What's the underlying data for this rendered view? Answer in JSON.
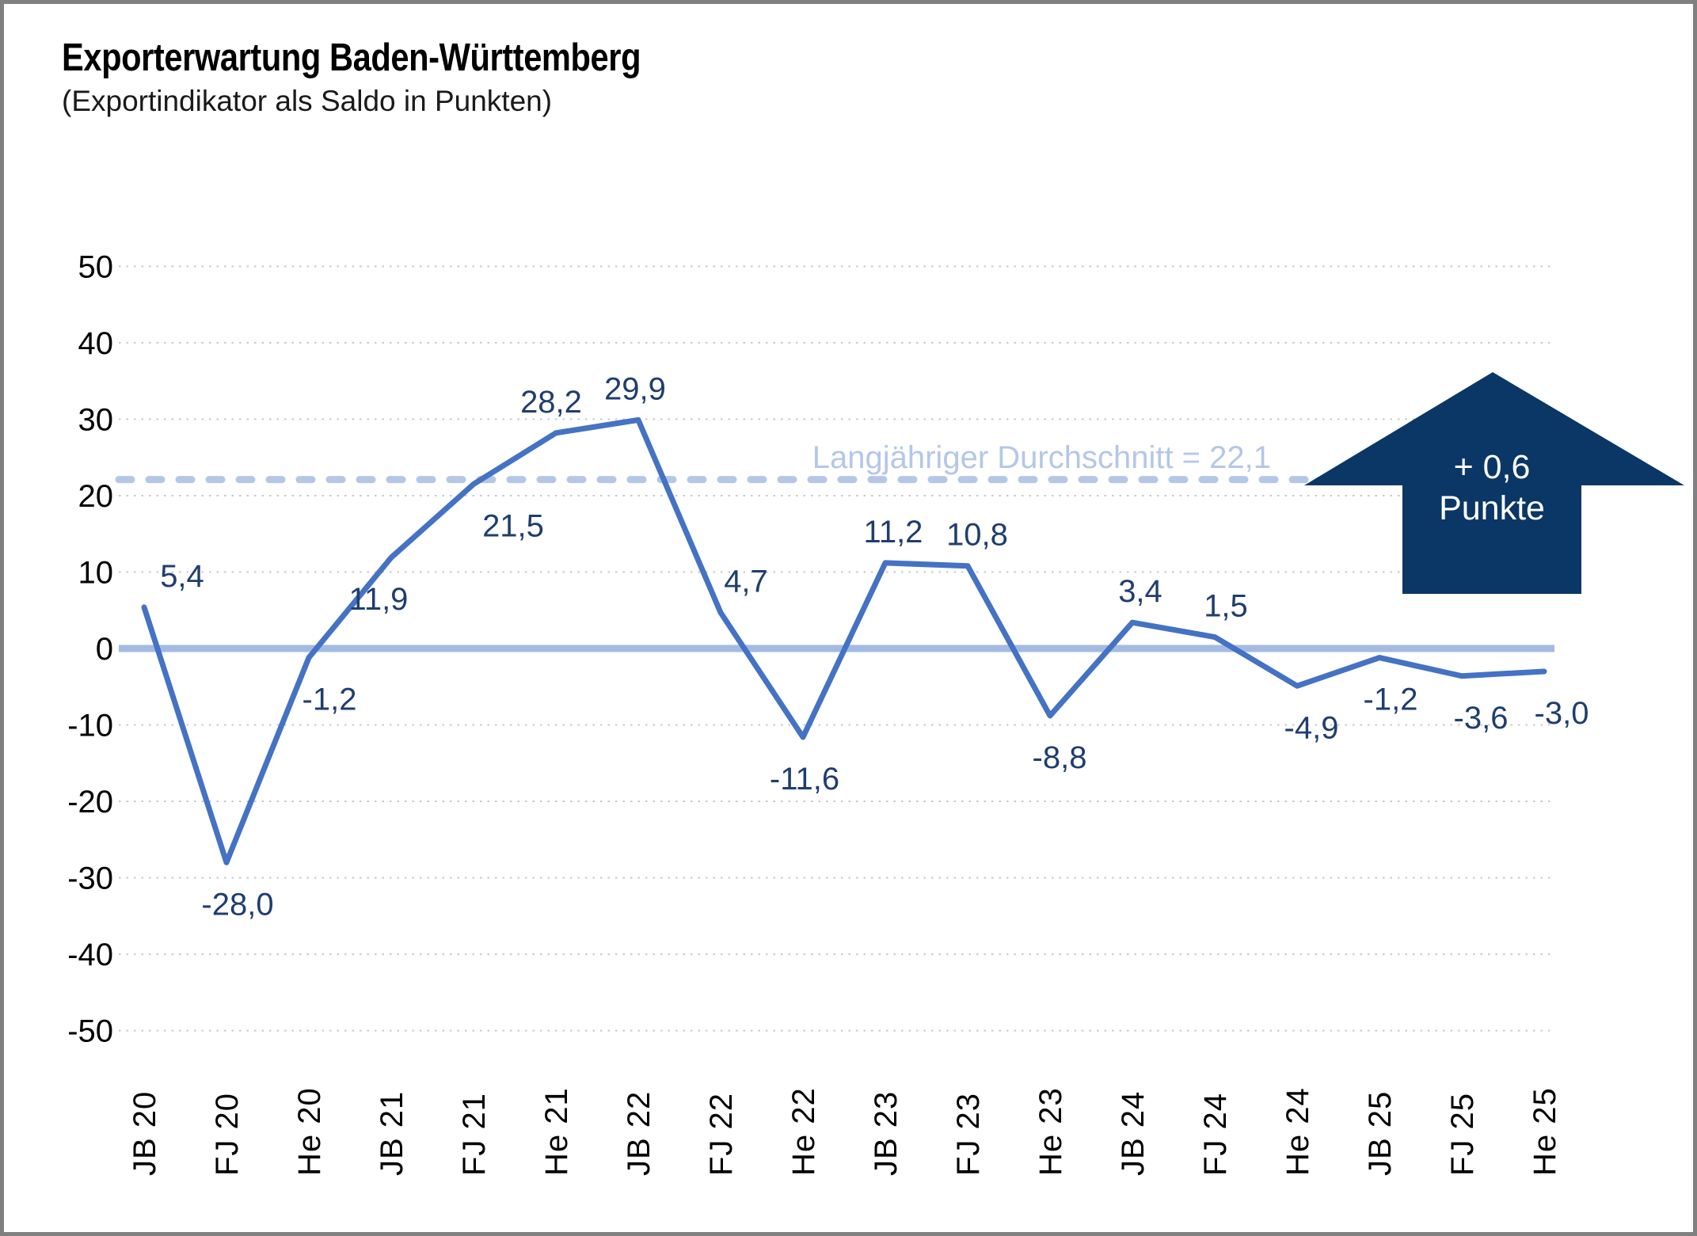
{
  "title": "Exporterwartung Baden-Württemberg",
  "subtitle": "(Exportindikator als Saldo in Punkten)",
  "average_annotation": {
    "label": "Langjähriger Durchschnitt = 22,1",
    "value": 22.1
  },
  "arrow_badge": {
    "line1": "+ 0,6",
    "line2": "Punkte"
  },
  "colors": {
    "line": "#4472C4",
    "zero_line": "#A3BBE3",
    "average_line": "#B4C7E7",
    "average_label": "#B4C7E7",
    "data_label": "#1F3E6E",
    "arrow_fill": "#0A3765",
    "arrow_text": "#FFFFFF",
    "gridline": "#C9C9C9",
    "axis_text": "#000000",
    "border": "#808080"
  },
  "chart_data": {
    "type": "line",
    "title": "Exporterwartung Baden-Württemberg",
    "subtitle": "(Exportindikator als Saldo in Punkten)",
    "categories": [
      "JB 20",
      "FJ 20",
      "He 20",
      "JB 21",
      "FJ 21",
      "He 21",
      "JB 22",
      "FJ 22",
      "He 22",
      "JB 23",
      "FJ 23",
      "He 23",
      "JB 24",
      "FJ 24",
      "He 24",
      "JB 25",
      "FJ 25",
      "He 25"
    ],
    "values": [
      5.4,
      -28.0,
      -1.2,
      11.9,
      21.5,
      28.2,
      29.9,
      4.7,
      -11.6,
      11.2,
      10.8,
      -8.8,
      3.4,
      1.5,
      -4.9,
      -1.2,
      -3.6,
      -3.0
    ],
    "value_labels": [
      "5,4",
      "-28,0",
      "-1,2",
      "11,9",
      "21,5",
      "28,2",
      "29,9",
      "4,7",
      "-11,6",
      "11,2",
      "10,8",
      "-8,8",
      "3,4",
      "1,5",
      "-4,9",
      "-1,2",
      "-3,6",
      "-3,0"
    ],
    "label_positions": [
      "above",
      "below",
      "below",
      "below",
      "below",
      "above",
      "above",
      "above",
      "below",
      "above",
      "above",
      "below",
      "above",
      "above",
      "below",
      "below",
      "below",
      "below"
    ],
    "label_dx": [
      48,
      14,
      26,
      -16,
      50,
      -6,
      -4,
      32,
      2,
      10,
      12,
      12,
      10,
      14,
      18,
      14,
      24,
      22
    ],
    "ylim": [
      -50,
      50
    ],
    "ytick_step": 10,
    "yticks": [
      "50",
      "40",
      "30",
      "20",
      "10",
      "0",
      "-10",
      "-20",
      "-30",
      "-40",
      "-50"
    ],
    "average_line": 22.1,
    "last_change": "+0,6",
    "grid": "horizontal-dotted",
    "legend": "none",
    "x_labels_rotated_deg": -90
  }
}
